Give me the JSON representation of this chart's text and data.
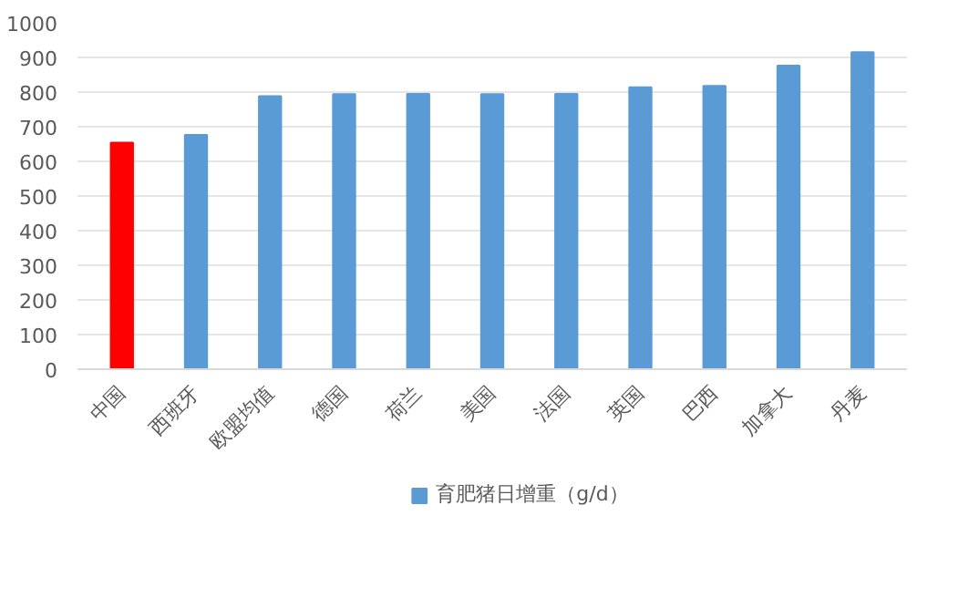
{
  "chart_data": {
    "type": "bar",
    "categories": [
      "中国",
      "西班牙",
      "欧盟均值",
      "德国",
      "荷兰",
      "美国",
      "法国",
      "英国",
      "巴西",
      "加拿大",
      "丹麦"
    ],
    "series": [
      {
        "name": "育肥猪日增重（g/d）",
        "color": "#5b9bd5",
        "colors": [
          "#ff0000",
          "#5b9bd5",
          "#5b9bd5",
          "#5b9bd5",
          "#5b9bd5",
          "#5b9bd5",
          "#5b9bd5",
          "#5b9bd5",
          "#5b9bd5",
          "#5b9bd5",
          "#5b9bd5"
        ],
        "values": [
          654,
          676,
          788,
          794,
          795,
          794,
          795,
          814,
          818,
          876,
          915
        ]
      }
    ],
    "ylim": [
      0,
      1000
    ],
    "yticks": [
      0,
      100,
      200,
      300,
      400,
      500,
      600,
      700,
      800,
      900,
      1000
    ],
    "grid": "y",
    "legend": "bottom"
  }
}
